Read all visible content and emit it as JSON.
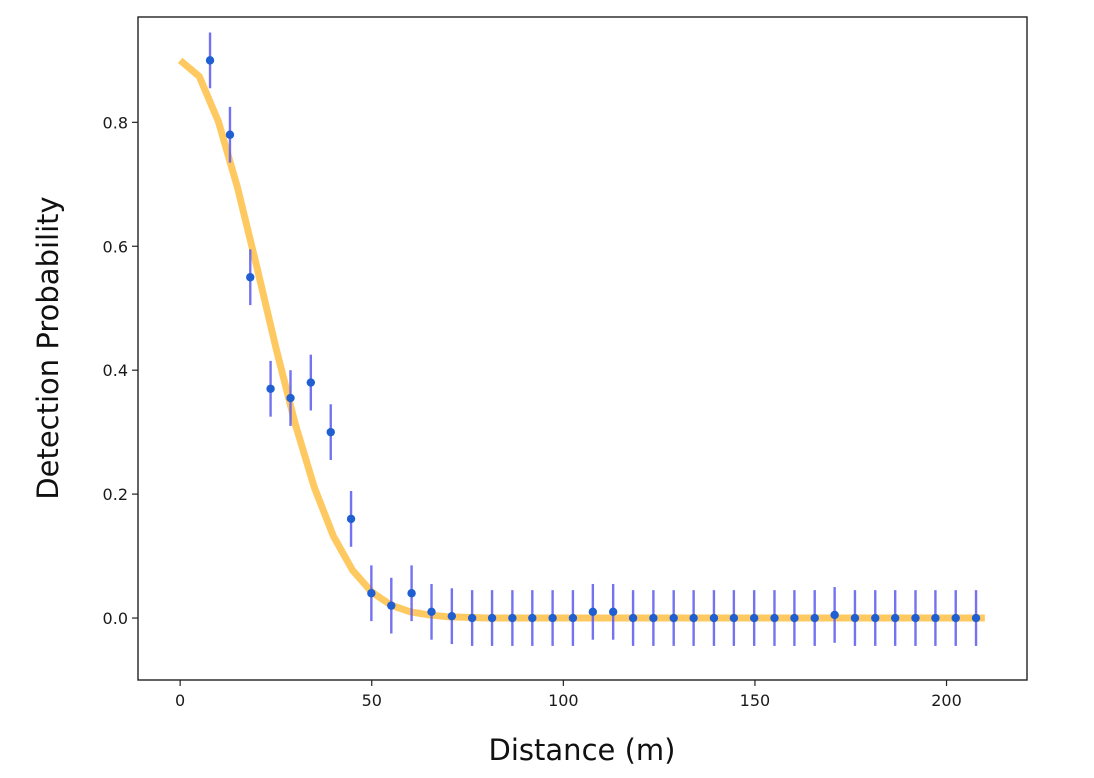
{
  "chart_data": {
    "type": "scatter",
    "title": "",
    "xlabel": "Distance (m)",
    "ylabel": "Detection Probability",
    "xlim": [
      -11,
      221
    ],
    "ylim": [
      -0.1,
      0.97
    ],
    "xticks": [
      {
        "value": 0,
        "label": "0"
      },
      {
        "value": 50,
        "label": "50"
      },
      {
        "value": 100,
        "label": "100"
      },
      {
        "value": 150,
        "label": "150"
      },
      {
        "value": 200,
        "label": "200"
      }
    ],
    "yticks": [
      {
        "value": 0.0,
        "label": "0.0"
      },
      {
        "value": 0.2,
        "label": "0.2"
      },
      {
        "value": 0.4,
        "label": "0.4"
      },
      {
        "value": 0.6,
        "label": "0.6"
      },
      {
        "value": 0.8,
        "label": "0.8"
      }
    ],
    "grid": false,
    "legend": "none",
    "series": [
      {
        "type": "errorbar",
        "color": "#1f5fd1",
        "errorbar_color": "#5a5af0",
        "x": [
          7.8,
          13.0,
          18.3,
          23.6,
          28.8,
          34.1,
          39.3,
          44.6,
          49.9,
          55.1,
          60.4,
          65.6,
          70.9,
          76.2,
          81.4,
          86.7,
          91.9,
          97.2,
          102.5,
          107.7,
          113.0,
          118.2,
          123.5,
          128.8,
          134.0,
          139.3,
          144.5,
          149.8,
          155.1,
          160.3,
          165.6,
          170.8,
          176.1,
          181.4,
          186.6,
          191.9,
          197.1,
          202.4,
          207.7
        ],
        "y": [
          0.9,
          0.78,
          0.55,
          0.37,
          0.355,
          0.38,
          0.3,
          0.16,
          0.04,
          0.02,
          0.04,
          0.01,
          0.003,
          0.0,
          0.0,
          0.0,
          0.0,
          0.0,
          0.0,
          0.01,
          0.01,
          0.0,
          0.0,
          0.0,
          0.0,
          0.0,
          0.0,
          0.0,
          0.0,
          0.0,
          0.0,
          0.005,
          0.0,
          0.0,
          0.0,
          0.0,
          0.0,
          0.0,
          0.0
        ],
        "yerr": [
          0.045,
          0.045,
          0.045,
          0.045,
          0.045,
          0.045,
          0.045,
          0.045,
          0.045,
          0.045,
          0.045,
          0.045,
          0.045,
          0.045,
          0.045,
          0.045,
          0.045,
          0.045,
          0.045,
          0.045,
          0.045,
          0.045,
          0.045,
          0.045,
          0.045,
          0.045,
          0.045,
          0.045,
          0.045,
          0.045,
          0.045,
          0.045,
          0.045,
          0.045,
          0.045,
          0.045,
          0.045,
          0.045,
          0.045
        ]
      },
      {
        "type": "line",
        "color": "#ffbf47",
        "x": [
          0,
          5,
          10,
          15,
          20,
          25,
          30,
          35,
          40,
          45,
          50,
          55,
          60,
          65,
          70,
          75,
          80,
          90,
          100,
          120,
          140,
          160,
          180,
          200,
          210
        ],
        "y": [
          0.9,
          0.874,
          0.801,
          0.694,
          0.567,
          0.436,
          0.314,
          0.211,
          0.132,
          0.077,
          0.042,
          0.021,
          0.01,
          0.005,
          0.002,
          0.001,
          0.0,
          0.0,
          0.0,
          0.0,
          0.0,
          0.0,
          0.0,
          0.0,
          0.0
        ]
      }
    ]
  }
}
